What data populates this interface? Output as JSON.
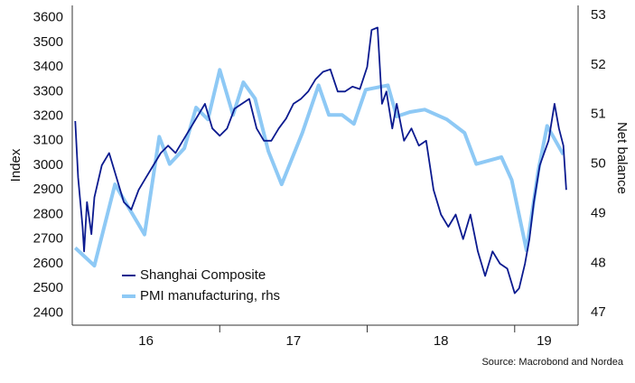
{
  "chart_data": {
    "type": "line",
    "y_label": "Index",
    "y2_label": "Net balance",
    "source": "Source: Macrobond and Nordea",
    "xlim": [
      2016,
      2019.43
    ],
    "xticks": [
      {
        "value": 2016.5,
        "label": "16"
      },
      {
        "value": 2017.5,
        "label": "17"
      },
      {
        "value": 2018.5,
        "label": "18"
      },
      {
        "value": 2019.2,
        "label": "19"
      }
    ],
    "xtick_marks": [
      2017,
      2018,
      2019
    ],
    "ylim": [
      2350,
      3650
    ],
    "yticks": [
      2400,
      2500,
      2600,
      2700,
      2800,
      2900,
      3000,
      3100,
      3200,
      3300,
      3400,
      3500,
      3600
    ],
    "y2lim": [
      46.75,
      53.2
    ],
    "y2ticks": [
      47,
      48,
      49,
      50,
      51,
      52,
      53
    ],
    "grid": false,
    "legend": "lower left",
    "series": [
      {
        "name": "Shanghai Composite",
        "color": "#0b1a8f",
        "x": [
          2016.02,
          2016.04,
          2016.07,
          2016.08,
          2016.1,
          2016.13,
          2016.15,
          2016.2,
          2016.25,
          2016.3,
          2016.35,
          2016.4,
          2016.45,
          2016.5,
          2016.55,
          2016.6,
          2016.65,
          2016.7,
          2016.75,
          2016.8,
          2016.85,
          2016.9,
          2016.95,
          2017.0,
          2017.05,
          2017.1,
          2017.15,
          2017.2,
          2017.25,
          2017.3,
          2017.35,
          2017.4,
          2017.45,
          2017.5,
          2017.55,
          2017.6,
          2017.65,
          2017.7,
          2017.75,
          2017.8,
          2017.85,
          2017.9,
          2017.95,
          2018.0,
          2018.03,
          2018.07,
          2018.1,
          2018.13,
          2018.17,
          2018.2,
          2018.25,
          2018.3,
          2018.35,
          2018.4,
          2018.45,
          2018.5,
          2018.55,
          2018.6,
          2018.65,
          2018.7,
          2018.75,
          2018.8,
          2018.85,
          2018.9,
          2018.95,
          2019.0,
          2019.03,
          2019.07,
          2019.1,
          2019.13,
          2019.17,
          2019.2,
          2019.23,
          2019.27,
          2019.3,
          2019.33,
          2019.35
        ],
        "values": [
          3180,
          2950,
          2750,
          2650,
          2850,
          2720,
          2870,
          3000,
          3050,
          2950,
          2850,
          2820,
          2900,
          2950,
          3000,
          3050,
          3080,
          3050,
          3100,
          3150,
          3200,
          3250,
          3150,
          3120,
          3150,
          3230,
          3250,
          3270,
          3150,
          3100,
          3100,
          3150,
          3190,
          3250,
          3270,
          3300,
          3350,
          3380,
          3390,
          3300,
          3300,
          3320,
          3310,
          3400,
          3550,
          3560,
          3250,
          3300,
          3150,
          3250,
          3100,
          3150,
          3080,
          3100,
          2900,
          2800,
          2750,
          2800,
          2700,
          2800,
          2650,
          2550,
          2650,
          2600,
          2580,
          2480,
          2500,
          2600,
          2700,
          2850,
          3000,
          3050,
          3100,
          3250,
          3150,
          3080,
          2900
        ]
      },
      {
        "name": "PMI manufacturing, rhs",
        "color": "#8ec9f5",
        "axis": "y2",
        "x": [
          2016.02,
          2016.15,
          2016.29,
          2016.49,
          2016.59,
          2016.66,
          2016.76,
          2016.84,
          2016.92,
          2017.0,
          2017.09,
          2017.16,
          2017.24,
          2017.33,
          2017.42,
          2017.56,
          2017.67,
          2017.74,
          2017.83,
          2017.91,
          2017.99,
          2018.14,
          2018.2,
          2018.29,
          2018.39,
          2018.54,
          2018.66,
          2018.74,
          2018.91,
          2018.98,
          2019.08,
          2019.16,
          2019.22,
          2019.33
        ],
        "values": [
          48.31,
          47.95,
          49.59,
          48.58,
          50.55,
          50.0,
          50.32,
          51.14,
          50.9,
          51.9,
          50.99,
          51.65,
          51.32,
          50.26,
          49.59,
          50.63,
          51.59,
          50.99,
          50.99,
          50.81,
          51.5,
          51.59,
          50.96,
          51.05,
          51.1,
          50.9,
          50.63,
          50.0,
          50.14,
          49.68,
          48.26,
          49.86,
          50.77,
          50.19
        ]
      }
    ]
  }
}
